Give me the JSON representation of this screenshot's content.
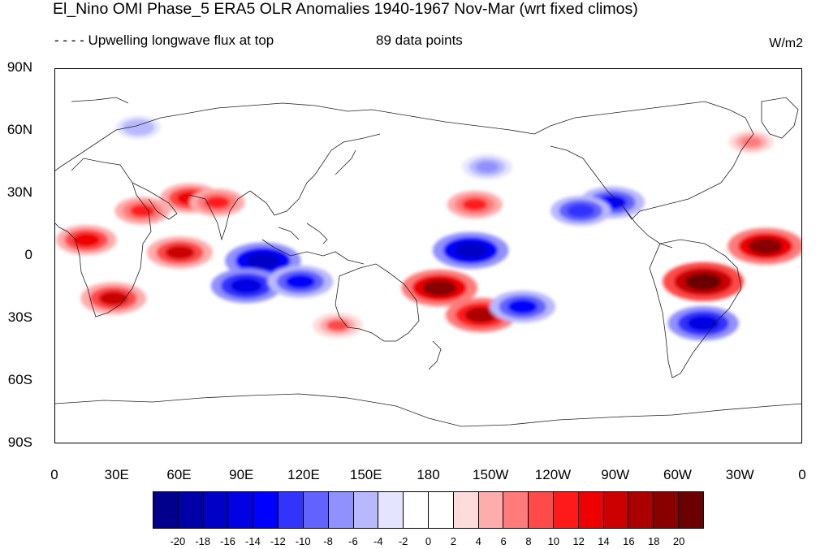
{
  "header": {
    "title": "El_Nino OMI Phase_5 ERA5 OLR Anomalies 1940-1967 Nov-Mar (wrt fixed climos)",
    "left_subtitle": "- - - - Upwelling longwave flux at top",
    "center_subtitle": "89 data points",
    "units": "W/m2"
  },
  "axes": {
    "y_ticks": [
      "90N",
      "60N",
      "30N",
      "0",
      "30S",
      "60S",
      "90S"
    ],
    "x_ticks": [
      "0",
      "30E",
      "60E",
      "90E",
      "120E",
      "150E",
      "180",
      "150W",
      "120W",
      "90W",
      "60W",
      "30W",
      "0"
    ]
  },
  "colorbar": {
    "labels": [
      "-20",
      "-18",
      "-16",
      "-14",
      "-12",
      "-10",
      "-8",
      "-6",
      "-4",
      "-2",
      "0",
      "2",
      "4",
      "6",
      "8",
      "10",
      "12",
      "14",
      "16",
      "18",
      "20"
    ],
    "colors": [
      "#00008c",
      "#0000a8",
      "#0000c6",
      "#0000e2",
      "#0000ff",
      "#3333ff",
      "#6262ff",
      "#9090ff",
      "#b8b8ff",
      "#e4e4ff",
      "#ffffff",
      "#ffffff",
      "#ffdcdc",
      "#ffacac",
      "#ff7a7a",
      "#ff4a4a",
      "#ff1a1a",
      "#ee0000",
      "#cc0000",
      "#aa0000",
      "#880000",
      "#6b0000"
    ]
  },
  "map": {
    "projection": "cylindrical-equidistant",
    "lon_range": [
      0,
      360
    ],
    "lat_range": [
      -90,
      90
    ],
    "anomalies": [
      {
        "lon": 15,
        "lat": 8,
        "value": 12
      },
      {
        "lon": 42,
        "lat": 22,
        "value": 10
      },
      {
        "lon": 65,
        "lat": 28,
        "value": 12
      },
      {
        "lon": 78,
        "lat": 26,
        "value": 10
      },
      {
        "lon": 60,
        "lat": 2,
        "value": 14
      },
      {
        "lon": 28,
        "lat": -20,
        "value": 14
      },
      {
        "lon": 100,
        "lat": -2,
        "value": -18
      },
      {
        "lon": 92,
        "lat": -14,
        "value": -16
      },
      {
        "lon": 118,
        "lat": -12,
        "value": -14
      },
      {
        "lon": 185,
        "lat": -15,
        "value": 18
      },
      {
        "lon": 205,
        "lat": -28,
        "value": 16
      },
      {
        "lon": 200,
        "lat": 3,
        "value": -18
      },
      {
        "lon": 225,
        "lat": -24,
        "value": -14
      },
      {
        "lon": 268,
        "lat": 26,
        "value": -14
      },
      {
        "lon": 253,
        "lat": 22,
        "value": -12
      },
      {
        "lon": 312,
        "lat": -12,
        "value": 20
      },
      {
        "lon": 312,
        "lat": -32,
        "value": -16
      },
      {
        "lon": 342,
        "lat": 5,
        "value": 18
      },
      {
        "lon": 208,
        "lat": 43,
        "value": -8
      },
      {
        "lon": 202,
        "lat": 25,
        "value": 10
      },
      {
        "lon": 136,
        "lat": -33,
        "value": 8
      },
      {
        "lon": 335,
        "lat": 55,
        "value": 6
      },
      {
        "lon": 40,
        "lat": 62,
        "value": -6
      }
    ]
  }
}
